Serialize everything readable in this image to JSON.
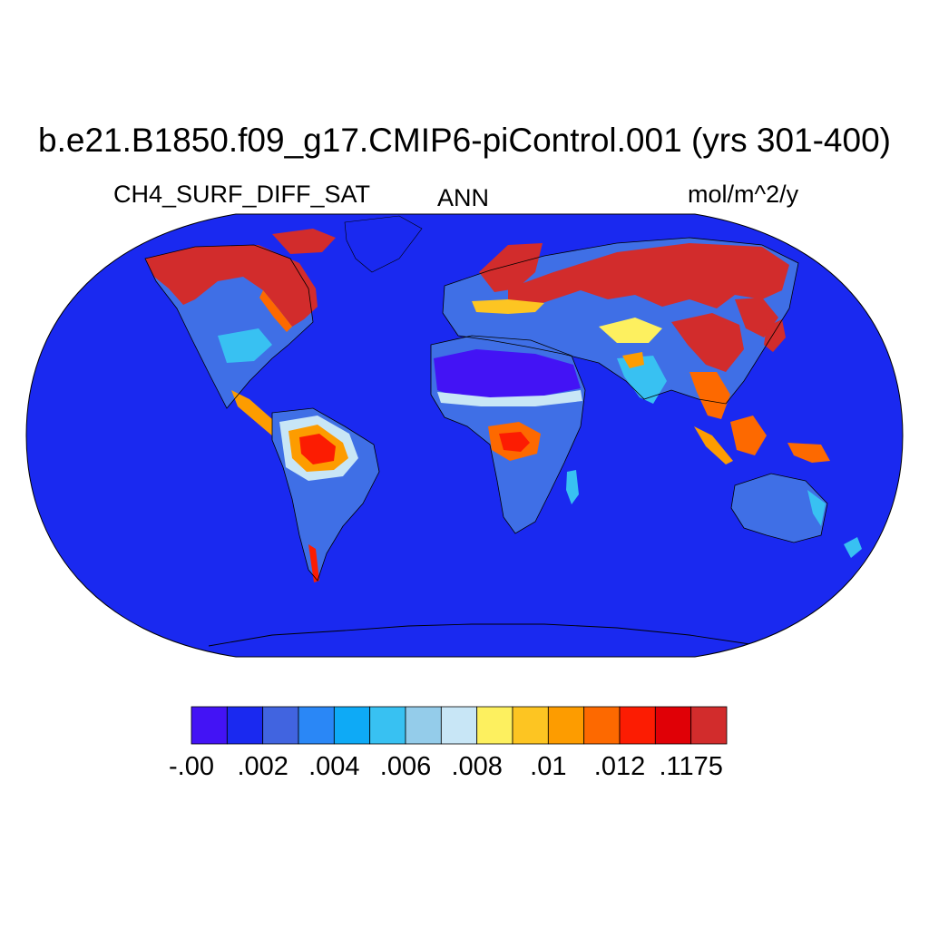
{
  "title": "b.e21.B1850.f09_g17.CMIP6-piControl.001 (yrs 301-400)",
  "variable": "CH4_SURF_DIFF_SAT",
  "season": "ANN",
  "units": "mol/m^2/y",
  "colorbar": {
    "colors": [
      "#4313f5",
      "#1a29f0",
      "#4164e0",
      "#2a87f6",
      "#0eaaf6",
      "#38c1f2",
      "#94ccea",
      "#c8e6f6",
      "#fdf05f",
      "#fdc522",
      "#fd9c00",
      "#fd6900",
      "#fc1c02",
      "#e00006",
      "#d22c2c"
    ],
    "labels": [
      {
        "text": "-.00",
        "after_box": 0
      },
      {
        "text": ".002",
        "after_box": 2
      },
      {
        "text": ".004",
        "after_box": 4
      },
      {
        "text": ".006",
        "after_box": 6
      },
      {
        "text": ".008",
        "after_box": 8
      },
      {
        "text": ".01",
        "after_box": 10
      },
      {
        "text": ".012",
        "after_box": 12
      },
      {
        "text": ".1175",
        "after_box": 14
      }
    ]
  }
}
